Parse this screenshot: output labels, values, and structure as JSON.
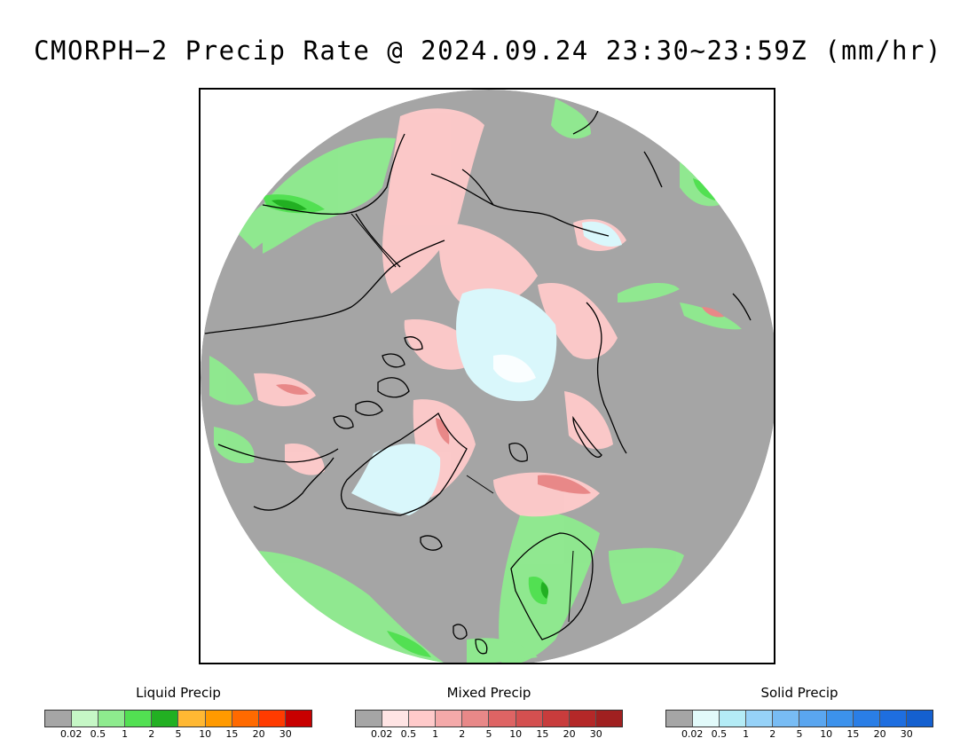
{
  "title": "CMORPH−2 Precip Rate @ 2024.09.24 23:30~23:59Z (mm/hr)",
  "map": {
    "projection": "north polar stereographic",
    "background_color": "#a5a5a5",
    "coastline_color": "#000000"
  },
  "legends": [
    {
      "id": "liquid",
      "title": "Liquid Precip",
      "colors": [
        "#a5a5a5",
        "#c6f7c6",
        "#8eeb8e",
        "#52e052",
        "#22b022",
        "#ffb833",
        "#ff9a00",
        "#ff6a00",
        "#ff3b00",
        "#c80000"
      ],
      "tick_labels": [
        "0.02",
        "0.5",
        "1",
        "2",
        "5",
        "10",
        "15",
        "20",
        "30"
      ]
    },
    {
      "id": "mixed",
      "title": "Mixed Precip",
      "colors": [
        "#a5a5a5",
        "#ffe4e4",
        "#ffcaca",
        "#f4a9a9",
        "#e88888",
        "#de6464",
        "#d45050",
        "#c83c3c",
        "#b42828",
        "#a02020"
      ],
      "tick_labels": [
        "0.02",
        "0.5",
        "1",
        "2",
        "5",
        "10",
        "15",
        "20",
        "30"
      ]
    },
    {
      "id": "solid",
      "title": "Solid Precip",
      "colors": [
        "#a5a5a5",
        "#e2fafa",
        "#b4ecf6",
        "#96d2f8",
        "#78bcf4",
        "#5aa6f0",
        "#3c92ec",
        "#2a7ee6",
        "#1e6ee0",
        "#1460d0"
      ],
      "tick_labels": [
        "0.02",
        "0.5",
        "1",
        "2",
        "5",
        "10",
        "15",
        "20",
        "30"
      ]
    }
  ]
}
